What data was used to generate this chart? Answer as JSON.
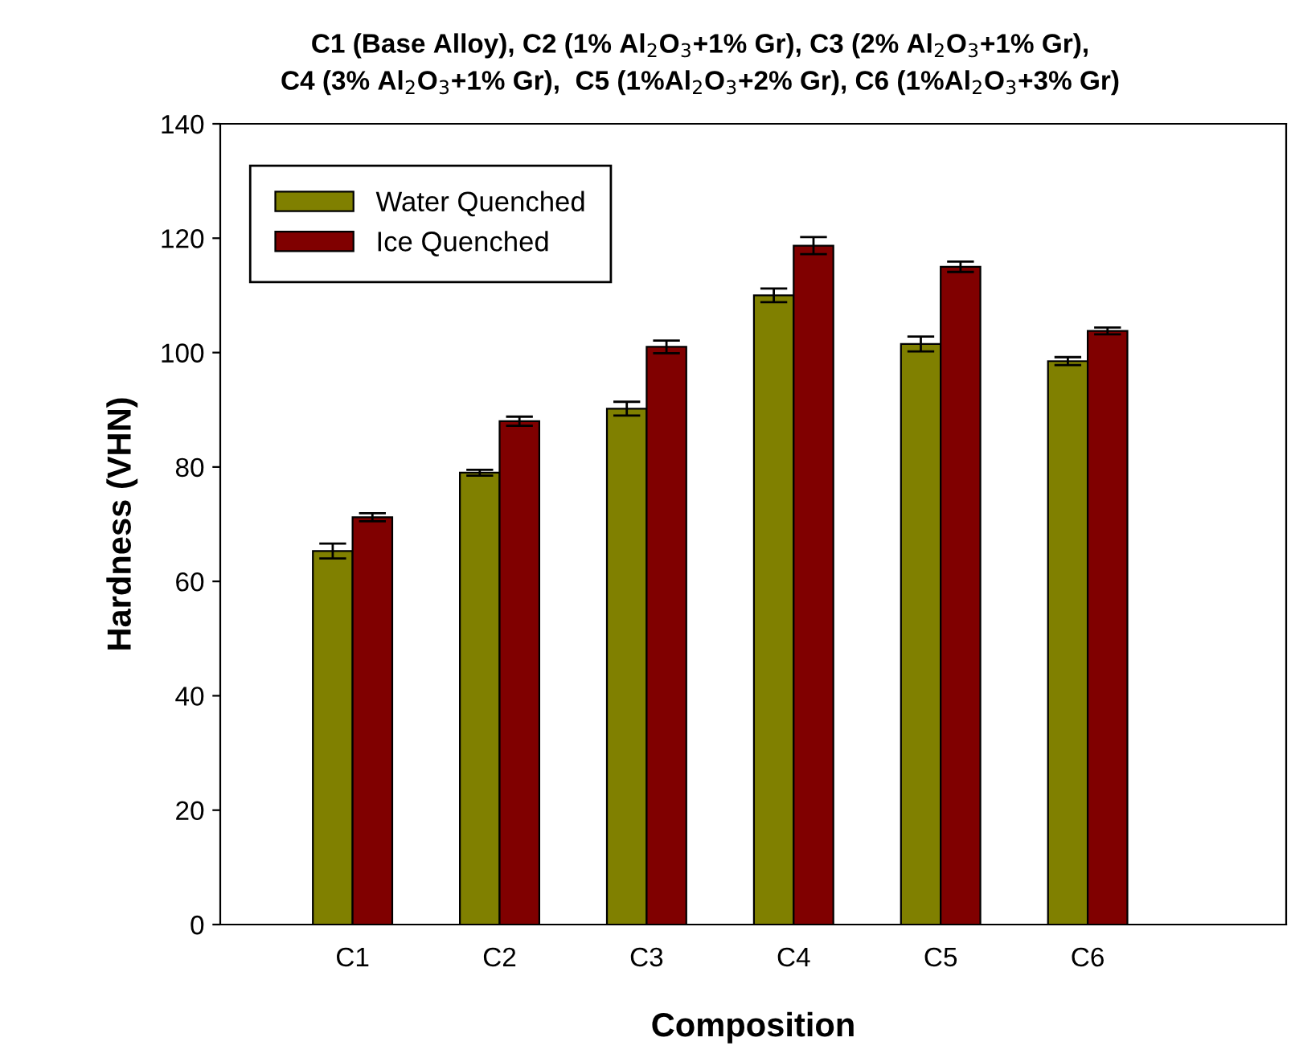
{
  "chart_data": {
    "type": "bar",
    "title": "C1 (Base Alloy), C2 (1% Al$_{2}$O$_{3}$+1% Gr), C3 (2% Al$_{2}$O$_{3}$+1% Gr),\nC4 (3% Al$_{2}$O$_{3}$+1% Gr),  C5 (1%Al$_{2}$O$_{3}$+2% Gr), C6 (1%Al$_{2}$O$_{3}$+3% Gr)",
    "xlabel": "Composition",
    "ylabel": "Hardness (VHN)",
    "categories": [
      "C1",
      "C2",
      "C3",
      "C4",
      "C5",
      "C6"
    ],
    "series": [
      {
        "name": "Water Quenched",
        "color": "#808000",
        "values": [
          65.3,
          79,
          90.2,
          110,
          101.5,
          98.5
        ],
        "errors": [
          1.3,
          0.5,
          1.2,
          1.2,
          1.3,
          0.7
        ]
      },
      {
        "name": "Ice Quenched",
        "color": "#800000",
        "values": [
          71.2,
          88,
          101,
          118.7,
          115,
          103.8
        ],
        "errors": [
          0.7,
          0.8,
          1.1,
          1.5,
          0.9,
          0.6
        ]
      }
    ],
    "ylim": [
      0,
      140
    ],
    "yticks": [
      0,
      20,
      40,
      60,
      80,
      100,
      120,
      140
    ],
    "grid": false,
    "legend": "top left"
  }
}
